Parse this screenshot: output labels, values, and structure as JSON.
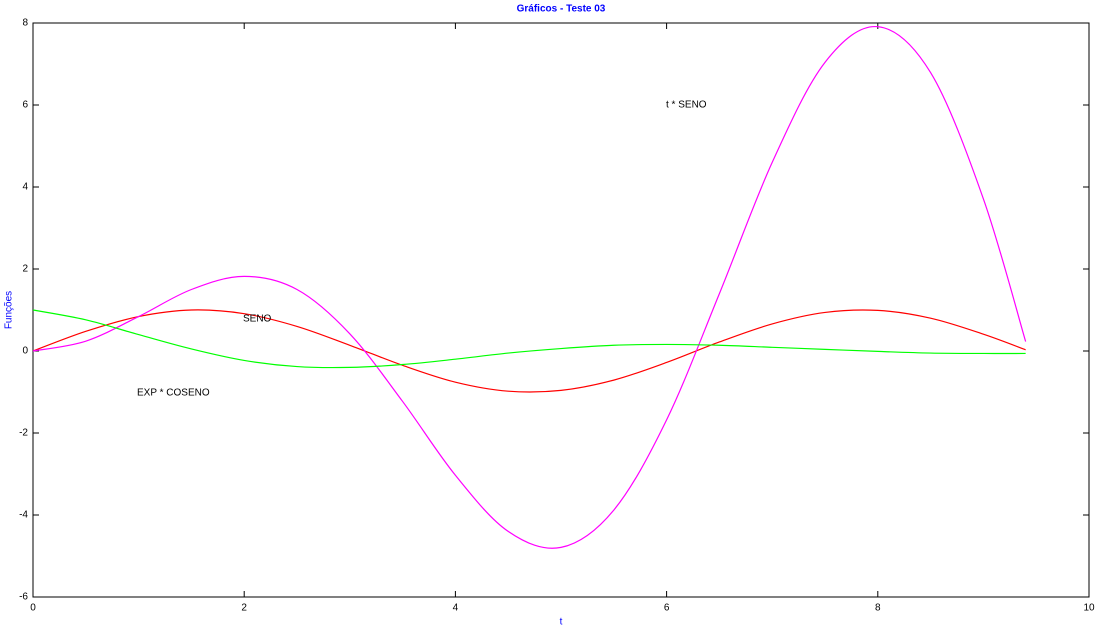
{
  "chart_data": {
    "type": "line",
    "title": "Gráficos - Teste 03",
    "xlabel": "t",
    "ylabel": "Funções",
    "x": [
      0,
      0.5,
      1,
      1.5,
      2,
      2.5,
      3,
      3.5,
      4,
      4.5,
      5,
      5.5,
      6,
      6.5,
      7,
      7.5,
      8,
      8.5,
      9,
      9.4
    ],
    "series": [
      {
        "name": "SENO",
        "color": "#ff0000",
        "values": [
          0,
          0.48,
          0.84,
          1.0,
          0.91,
          0.6,
          0.14,
          -0.35,
          -0.76,
          -0.98,
          -0.96,
          -0.71,
          -0.28,
          0.22,
          0.66,
          0.94,
          0.99,
          0.8,
          0.41,
          0.03
        ]
      },
      {
        "name": "t * SENO",
        "color": "#ff00ff",
        "values": [
          0,
          0.24,
          0.84,
          1.5,
          1.82,
          1.5,
          0.42,
          -1.23,
          -3.03,
          -4.4,
          -4.79,
          -3.88,
          -1.68,
          1.4,
          4.6,
          7.04,
          7.91,
          6.79,
          3.71,
          0.23
        ]
      },
      {
        "name": "EXP * COSENO",
        "color": "#00ff00",
        "values": [
          1,
          0.76,
          0.4,
          0.05,
          -0.23,
          -0.38,
          -0.4,
          -0.33,
          -0.2,
          -0.05,
          0.06,
          0.14,
          0.16,
          0.14,
          0.09,
          0.04,
          -0.01,
          -0.05,
          -0.06,
          -0.06
        ]
      }
    ],
    "xlim": [
      0,
      10
    ],
    "xticks": [
      0,
      2,
      4,
      6,
      8,
      10
    ],
    "ylim": [
      -6,
      8
    ],
    "yticks": [
      -6,
      -4,
      -2,
      0,
      2,
      4,
      6,
      8
    ],
    "grid": false
  }
}
